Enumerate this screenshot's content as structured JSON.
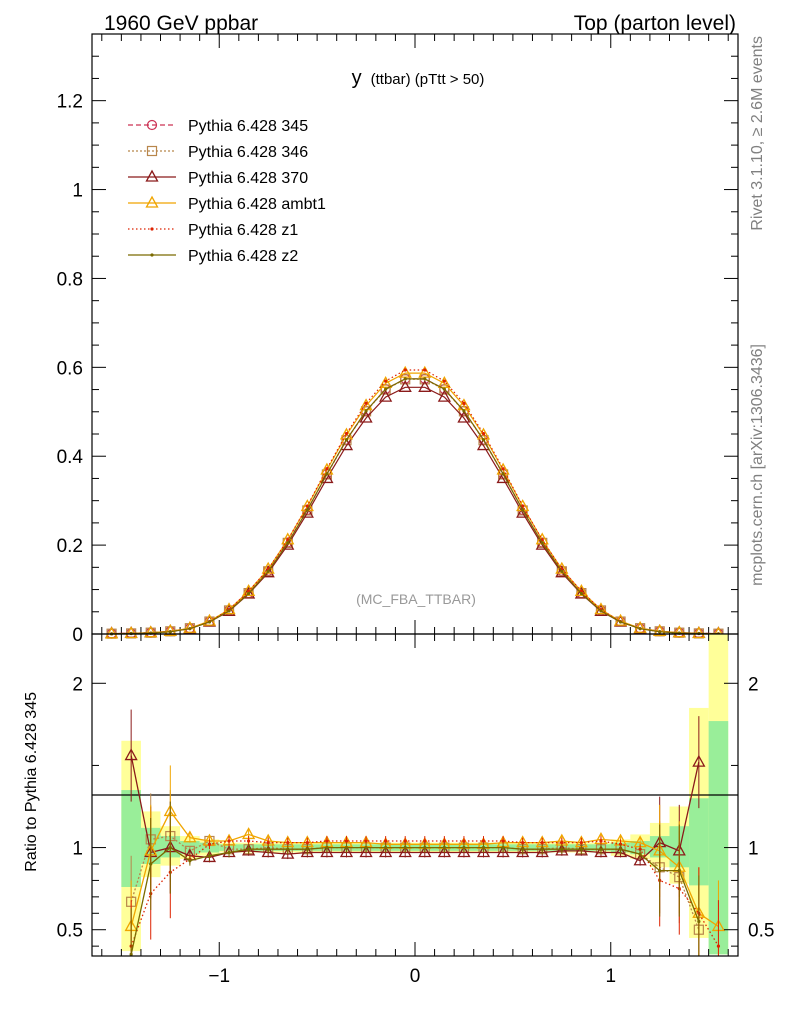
{
  "header": {
    "left": "1960 GeV ppbar",
    "right": "Top (parton level)",
    "side_top": "Rivet 3.1.10, ≥ 2.6M events",
    "side_bottom": "mcplots.cern.ch [arXiv:1306.3436]",
    "watermark": "(MC_FBA_TTBAR)"
  },
  "chart_data": [
    {
      "type": "line",
      "title": "y (ttbar) (pTtt > 50)",
      "title_main": "y",
      "title_sub": "(ttbar) (pTtt > 50)",
      "xlim": [
        -1.65,
        1.65
      ],
      "ylim": [
        0,
        1.35
      ],
      "y_ticks": [
        0,
        0.2,
        0.4,
        0.6,
        0.8,
        1,
        1.2
      ],
      "y_tick_labels": [
        "0",
        "0.2",
        "0.4",
        "0.6",
        "0.8",
        "1",
        "1.2"
      ],
      "legend_position": "top-left",
      "x": [
        -1.55,
        -1.45,
        -1.35,
        -1.25,
        -1.15,
        -1.05,
        -0.95,
        -0.85,
        -0.75,
        -0.65,
        -0.55,
        -0.45,
        -0.35,
        -0.25,
        -0.15,
        -0.05,
        0.05,
        0.15,
        0.25,
        0.35,
        0.45,
        0.55,
        0.65,
        0.75,
        0.85,
        0.95,
        1.05,
        1.15,
        1.25,
        1.35,
        1.45,
        1.55
      ],
      "series": [
        {
          "name": "Pythia 6.428 345",
          "color": "#cc3355",
          "dash": "5,3",
          "marker": "circle",
          "values": [
            0.0008,
            0.0015,
            0.003,
            0.006,
            0.013,
            0.028,
            0.053,
            0.092,
            0.142,
            0.206,
            0.279,
            0.36,
            0.437,
            0.502,
            0.551,
            0.574,
            0.574,
            0.551,
            0.502,
            0.437,
            0.36,
            0.279,
            0.206,
            0.142,
            0.092,
            0.053,
            0.028,
            0.013,
            0.006,
            0.003,
            0.0015,
            0.0008
          ]
        },
        {
          "name": "Pythia 6.428 346",
          "color": "#b8864b",
          "dash": "2,2",
          "marker": "square",
          "values": [
            0.0007,
            0.0013,
            0.003,
            0.006,
            0.013,
            0.028,
            0.053,
            0.092,
            0.141,
            0.205,
            0.278,
            0.359,
            0.436,
            0.501,
            0.55,
            0.573,
            0.573,
            0.55,
            0.501,
            0.436,
            0.359,
            0.278,
            0.205,
            0.141,
            0.092,
            0.053,
            0.028,
            0.013,
            0.006,
            0.003,
            0.0013,
            0.0007
          ]
        },
        {
          "name": "Pythia 6.428 370",
          "color": "#8b1a1a",
          "dash": "",
          "marker": "triangle",
          "values": [
            0.0009,
            0.0016,
            0.003,
            0.006,
            0.012,
            0.027,
            0.051,
            0.09,
            0.138,
            0.2,
            0.272,
            0.35,
            0.424,
            0.486,
            0.533,
            0.555,
            0.555,
            0.533,
            0.486,
            0.424,
            0.35,
            0.272,
            0.2,
            0.138,
            0.09,
            0.051,
            0.027,
            0.012,
            0.006,
            0.003,
            0.0016,
            0.0009
          ]
        },
        {
          "name": "Pythia 6.428 ambt1",
          "color": "#f0a500",
          "dash": "",
          "marker": "triangle",
          "values": [
            0.0004,
            0.0012,
            0.003,
            0.006,
            0.013,
            0.029,
            0.055,
            0.096,
            0.146,
            0.212,
            0.287,
            0.369,
            0.448,
            0.514,
            0.564,
            0.587,
            0.587,
            0.564,
            0.514,
            0.448,
            0.369,
            0.287,
            0.212,
            0.146,
            0.096,
            0.055,
            0.029,
            0.013,
            0.006,
            0.003,
            0.0012,
            0.0004
          ]
        },
        {
          "name": "Pythia 6.428 z1",
          "color": "#dd2200",
          "dash": "1.5,2.5",
          "marker": "dot",
          "values": [
            0.0004,
            0.0011,
            0.002,
            0.005,
            0.012,
            0.028,
            0.055,
            0.096,
            0.146,
            0.212,
            0.288,
            0.372,
            0.451,
            0.519,
            0.569,
            0.594,
            0.594,
            0.569,
            0.519,
            0.451,
            0.372,
            0.288,
            0.212,
            0.146,
            0.096,
            0.055,
            0.028,
            0.012,
            0.005,
            0.002,
            0.0011,
            0.0004
          ]
        },
        {
          "name": "Pythia 6.428 z2",
          "color": "#7a6a00",
          "dash": "",
          "marker": "dot",
          "values": [
            0.0003,
            0.0011,
            0.002,
            0.005,
            0.012,
            0.027,
            0.052,
            0.091,
            0.141,
            0.205,
            0.279,
            0.36,
            0.437,
            0.502,
            0.551,
            0.574,
            0.574,
            0.551,
            0.502,
            0.437,
            0.36,
            0.279,
            0.205,
            0.141,
            0.091,
            0.052,
            0.027,
            0.012,
            0.005,
            0.002,
            0.0011,
            0.0003
          ]
        }
      ]
    },
    {
      "type": "line",
      "ylabel": "Ratio to Pythia 6.428 345",
      "xlim": [
        -1.65,
        1.65
      ],
      "ylim": [
        0.34,
        2.3
      ],
      "x_ticks": [
        -1,
        0,
        1
      ],
      "x_tick_labels": [
        "−1",
        "0",
        "1"
      ],
      "y_ticks": [
        0.5,
        1,
        2
      ],
      "y_tick_labels": [
        "0.5",
        "1",
        "2"
      ],
      "x": [
        -1.45,
        -1.35,
        -1.25,
        -1.15,
        -1.05,
        -0.95,
        -0.85,
        -0.75,
        -0.65,
        -0.55,
        -0.45,
        -0.35,
        -0.25,
        -0.15,
        -0.05,
        0.05,
        0.15,
        0.25,
        0.35,
        0.45,
        0.55,
        0.65,
        0.75,
        0.85,
        0.95,
        1.05,
        1.15,
        1.25,
        1.35,
        1.45,
        1.55
      ],
      "bands": {
        "x_edges": [
          -1.5,
          -1.4,
          -1.3,
          -1.2,
          -1.1,
          -1.0,
          1.0,
          1.1,
          1.2,
          1.3,
          1.4,
          1.5,
          1.6
        ],
        "green": [
          [
            0.76,
            1.35
          ],
          [
            0.9,
            1.12
          ],
          [
            0.94,
            1.07
          ],
          [
            0.96,
            1.04
          ],
          [
            0.97,
            1.03
          ],
          [
            0.98,
            1.02
          ],
          [
            0.97,
            1.03
          ],
          [
            0.96,
            1.04
          ],
          [
            0.94,
            1.07
          ],
          [
            0.88,
            1.13
          ],
          [
            0.77,
            1.3
          ],
          [
            0.35,
            1.77
          ]
        ],
        "yellow": [
          [
            0.37,
            1.65
          ],
          [
            0.82,
            1.22
          ],
          [
            0.89,
            1.13
          ],
          [
            0.93,
            1.07
          ],
          [
            0.95,
            1.05
          ],
          [
            0.97,
            1.03
          ],
          [
            0.95,
            1.05
          ],
          [
            0.93,
            1.08
          ],
          [
            0.88,
            1.15
          ],
          [
            0.78,
            1.25
          ],
          [
            0.45,
            1.85
          ],
          [
            0.35,
            2.3
          ]
        ]
      },
      "series": [
        {
          "name": "Pythia 6.428 346",
          "color": "#b8864b",
          "values": [
            0.67,
            1.05,
            1.07,
            0.98,
            1.04,
            0.99,
            0.99,
            1.0,
            0.99,
            0.99,
            1.0,
            1.0,
            1.0,
            1.0,
            1.0,
            1.0,
            1.0,
            1.0,
            1.0,
            1.0,
            0.99,
            0.99,
            1.0,
            0.99,
            0.99,
            0.99,
            0.96,
            0.88,
            0.82,
            0.5,
            null
          ]
        },
        {
          "name": "Pythia 6.428 370",
          "color": "#8b1a1a",
          "values": [
            1.56,
            0.97,
            1.0,
            0.95,
            0.94,
            0.97,
            0.98,
            0.97,
            0.96,
            0.97,
            0.97,
            0.97,
            0.97,
            0.97,
            0.97,
            0.97,
            0.97,
            0.97,
            0.97,
            0.97,
            0.97,
            0.97,
            0.98,
            0.98,
            0.97,
            0.97,
            0.92,
            1.03,
            0.98,
            1.52,
            null
          ]
        },
        {
          "name": "Pythia 6.428 ambt1",
          "color": "#f0a500",
          "values": [
            0.52,
            0.98,
            1.22,
            1.06,
            1.04,
            1.04,
            1.08,
            1.04,
            1.03,
            1.03,
            1.03,
            1.03,
            1.03,
            1.02,
            1.02,
            1.02,
            1.02,
            1.02,
            1.02,
            1.03,
            1.03,
            1.03,
            1.04,
            1.03,
            1.05,
            1.04,
            1.03,
            0.98,
            0.88,
            0.6,
            0.52
          ]
        },
        {
          "name": "Pythia 6.428 z1",
          "color": "#dd2200",
          "values": [
            0.4,
            0.72,
            0.85,
            0.93,
            1.02,
            1.04,
            1.04,
            1.03,
            1.03,
            1.03,
            1.04,
            1.04,
            1.04,
            1.04,
            1.04,
            1.04,
            1.04,
            1.04,
            1.04,
            1.04,
            1.03,
            1.03,
            1.03,
            1.03,
            1.04,
            1.02,
            0.99,
            0.8,
            0.75,
            0.6,
            0.4
          ]
        },
        {
          "name": "Pythia 6.428 z2",
          "color": "#7a6a00",
          "values": [
            0.35,
            0.9,
            1.0,
            0.92,
            0.95,
            0.97,
            0.99,
            0.99,
            0.99,
            0.99,
            1.0,
            1.0,
            1.0,
            1.0,
            1.0,
            1.0,
            1.0,
            1.0,
            1.0,
            1.0,
            0.99,
            0.99,
            0.99,
            0.99,
            0.99,
            0.99,
            0.96,
            0.86,
            0.86,
            0.55,
            null
          ]
        }
      ]
    }
  ],
  "colors": {
    "band_green": "#99ee99",
    "band_yellow": "#ffff99",
    "frame": "#000000",
    "side_text": "#808080",
    "watermark": "#999999"
  }
}
